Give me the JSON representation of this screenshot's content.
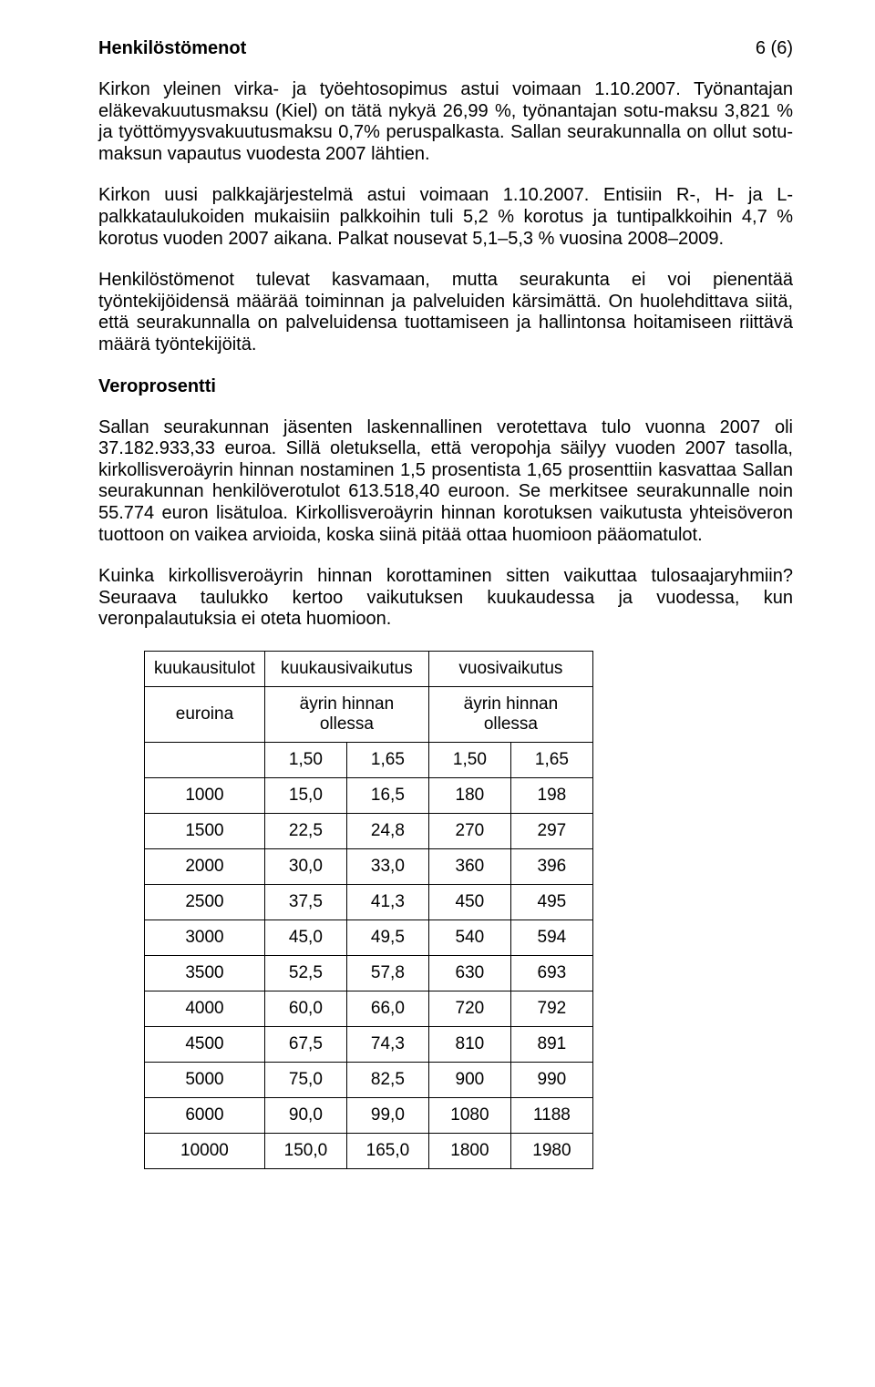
{
  "page_number": "6 (6)",
  "heading1": "Henkilöstömenot",
  "para1": "Kirkon yleinen virka- ja työehtosopimus astui voimaan 1.10.2007. Työnantajan eläkevakuutusmaksu (Kiel) on tätä nykyä 26,99 %, työnantajan sotu-maksu 3,821 % ja työttömyysvakuutusmaksu 0,7% peruspalkasta. Sallan seurakunnalla on ollut sotu-maksun vapautus vuodesta 2007 lähtien.",
  "para2": "Kirkon uusi palkkajärjestelmä astui voimaan 1.10.2007. Entisiin R-, H- ja L-palkkataulukoiden mukaisiin palkkoihin tuli 5,2 % korotus ja tuntipalkkoihin 4,7 % korotus vuoden 2007 aikana. Palkat nousevat 5,1–5,3 % vuosina 2008–2009.",
  "para3": "Henkilöstömenot tulevat kasvamaan, mutta seurakunta ei voi pienentää työntekijöidensä määrää toiminnan ja palveluiden kärsimättä. On huolehdittava siitä, että seurakunnalla on palveluidensa tuottamiseen ja hallintonsa hoitamiseen riittävä määrä työntekijöitä.",
  "heading2": "Veroprosentti",
  "para4": "Sallan seurakunnan jäsenten laskennallinen verotettava tulo vuonna 2007 oli 37.182.933,33 euroa. Sillä oletuksella, että veropohja säilyy vuoden 2007 tasolla, kirkollisveroäyrin hinnan nostaminen 1,5 prosentista 1,65 prosenttiin kasvattaa Sallan seurakunnan henkilöverotulot 613.518,40 euroon. Se merkitsee seurakunnalle noin 55.774 euron lisätuloa. Kirkollisveroäyrin hinnan korotuksen vaikutusta yhteisöveron tuottoon on vaikea arvioida, koska siinä pitää ottaa huomioon pääomatulot.",
  "para5": "Kuinka kirkollisveroäyrin hinnan korottaminen sitten vaikuttaa tulosaajaryhmiin? Seuraava taulukko kertoo vaikutuksen kuukaudessa ja vuodessa, kun veronpalautuksia ei oteta huomioon.",
  "table": {
    "head": {
      "col1_line1": "kuukausitulot",
      "col1_line2": "euroina",
      "col2_line1": "kuukausivaikutus",
      "col2_line2": "äyrin hinnan ollessa",
      "col3_line1": "vuosivaikutus",
      "col3_line2": "äyrin hinnan ollessa",
      "r150": "1,50",
      "r165": "1,65"
    },
    "rows": [
      [
        "1000",
        "15,0",
        "16,5",
        "180",
        "198"
      ],
      [
        "1500",
        "22,5",
        "24,8",
        "270",
        "297"
      ],
      [
        "2000",
        "30,0",
        "33,0",
        "360",
        "396"
      ],
      [
        "2500",
        "37,5",
        "41,3",
        "450",
        "495"
      ],
      [
        "3000",
        "45,0",
        "49,5",
        "540",
        "594"
      ],
      [
        "3500",
        "52,5",
        "57,8",
        "630",
        "693"
      ],
      [
        "4000",
        "60,0",
        "66,0",
        "720",
        "792"
      ],
      [
        "4500",
        "67,5",
        "74,3",
        "810",
        "891"
      ],
      [
        "5000",
        "75,0",
        "82,5",
        "900",
        "990"
      ],
      [
        "6000",
        "90,0",
        "99,0",
        "1080",
        "1188"
      ],
      [
        "10000",
        "150,0",
        "165,0",
        "1800",
        "1980"
      ]
    ]
  }
}
